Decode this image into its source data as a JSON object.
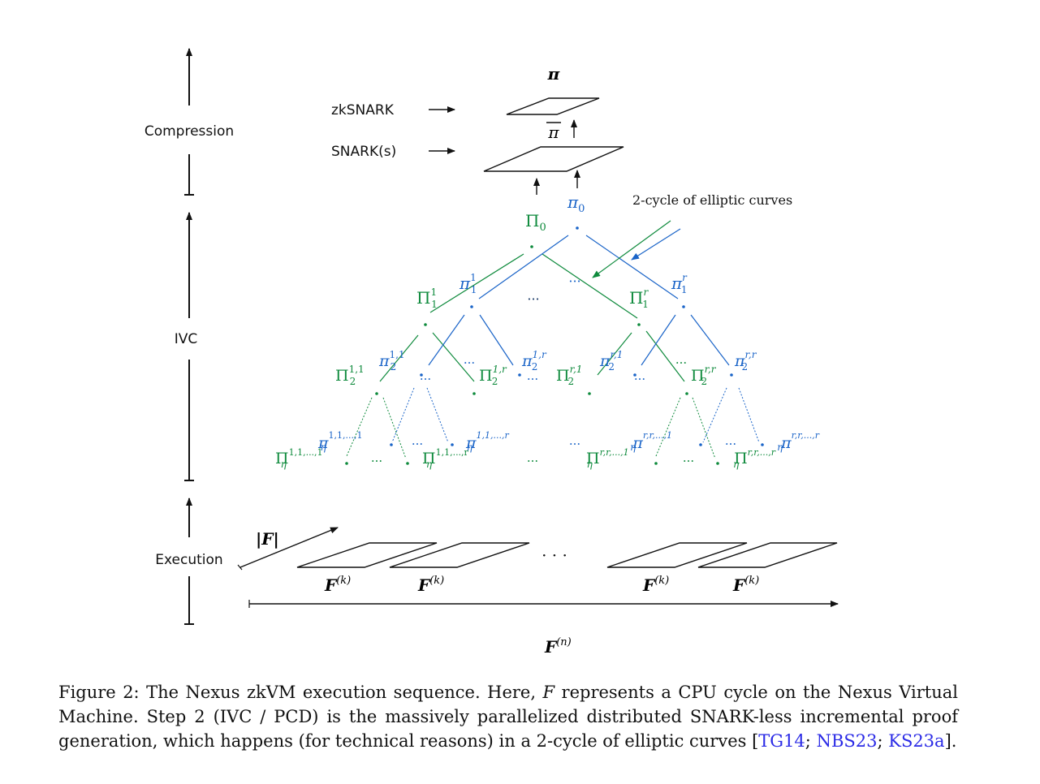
{
  "axis": {
    "compression_label": "Compression",
    "ivc_label": "IVC",
    "execution_label": "Execution"
  },
  "compression": {
    "zksnark_label": "zkSNARK",
    "snarks_label": "SNARK(s)",
    "pi_top": "π",
    "pi_bar": "π",
    "pi0": "π",
    "pi0_sub": "0",
    "Pi0": "Π",
    "Pi0_sub": "0"
  },
  "tree": {
    "elliptic_label": "2-cycle of elliptic curves",
    "level1": [
      {
        "sym": "Π",
        "sub": "1",
        "sup": "1",
        "color": "green"
      },
      {
        "sym": "π",
        "sub": "1",
        "sup": "1",
        "color": "blue"
      },
      {
        "sym": "Π",
        "sub": "1",
        "sup": "r",
        "color": "green"
      },
      {
        "sym": "π",
        "sub": "1",
        "sup": "r",
        "color": "blue"
      }
    ],
    "level2": [
      {
        "sym": "Π",
        "sub": "2",
        "sup": "1,1",
        "color": "green"
      },
      {
        "sym": "π",
        "sub": "2",
        "sup": "1,1",
        "color": "blue"
      },
      {
        "sym": "Π",
        "sub": "2",
        "sup": "1,r",
        "color": "green"
      },
      {
        "sym": "π",
        "sub": "2",
        "sup": "1,r",
        "color": "blue"
      },
      {
        "sym": "Π",
        "sub": "2",
        "sup": "r,1",
        "color": "green"
      },
      {
        "sym": "π",
        "sub": "2",
        "sup": "r,1",
        "color": "blue"
      },
      {
        "sym": "Π",
        "sub": "2",
        "sup": "r,r",
        "color": "green"
      },
      {
        "sym": "π",
        "sub": "2",
        "sup": "r,r",
        "color": "blue"
      }
    ],
    "leaves": [
      {
        "sym": "Π",
        "sub": "η",
        "sup": "1,1,...,1",
        "color": "green"
      },
      {
        "sym": "π",
        "sub": "η",
        "sup": "1,1,...,1",
        "color": "blue"
      },
      {
        "sym": "Π",
        "sub": "η",
        "sup": "1,1,...,r",
        "color": "green"
      },
      {
        "sym": "π",
        "sub": "η",
        "sup": "1,1,...,r",
        "color": "blue"
      },
      {
        "sym": "Π",
        "sub": "η",
        "sup": "r,r,...,1",
        "color": "green"
      },
      {
        "sym": "π",
        "sub": "η",
        "sup": "r,r,...,1",
        "color": "blue"
      },
      {
        "sym": "Π",
        "sub": "η",
        "sup": "r,r,...,r",
        "color": "green"
      },
      {
        "sym": "π",
        "sub": "η",
        "sup": "r,r,...,r",
        "color": "blue"
      }
    ],
    "ellipsis": "···"
  },
  "execution": {
    "abs_f": "|F|",
    "step_label": "F",
    "step_sup": "(k)",
    "total_label": "F",
    "total_sup": "(n)",
    "ellipsis": "· · ·"
  },
  "caption": {
    "prefix": "Figure 2:  The Nexus zkVM execution sequence.  Here, ",
    "var": "F",
    "body": " represents a CPU cycle on the Nexus Virtual Machine. Step 2 (IVC / PCD) is the massively parallelized distributed SNARK-less incremental proof generation, which happens (for technical reasons) in a 2-cycle of elliptic curves [",
    "ref1": "TG14",
    "sep1": "; ",
    "ref2": "NBS23",
    "sep2": "; ",
    "ref3": "KS23a",
    "suffix": "]."
  },
  "colors": {
    "green": "#0e8a3c",
    "blue": "#1a64c8",
    "link": "#2a2ae6"
  }
}
